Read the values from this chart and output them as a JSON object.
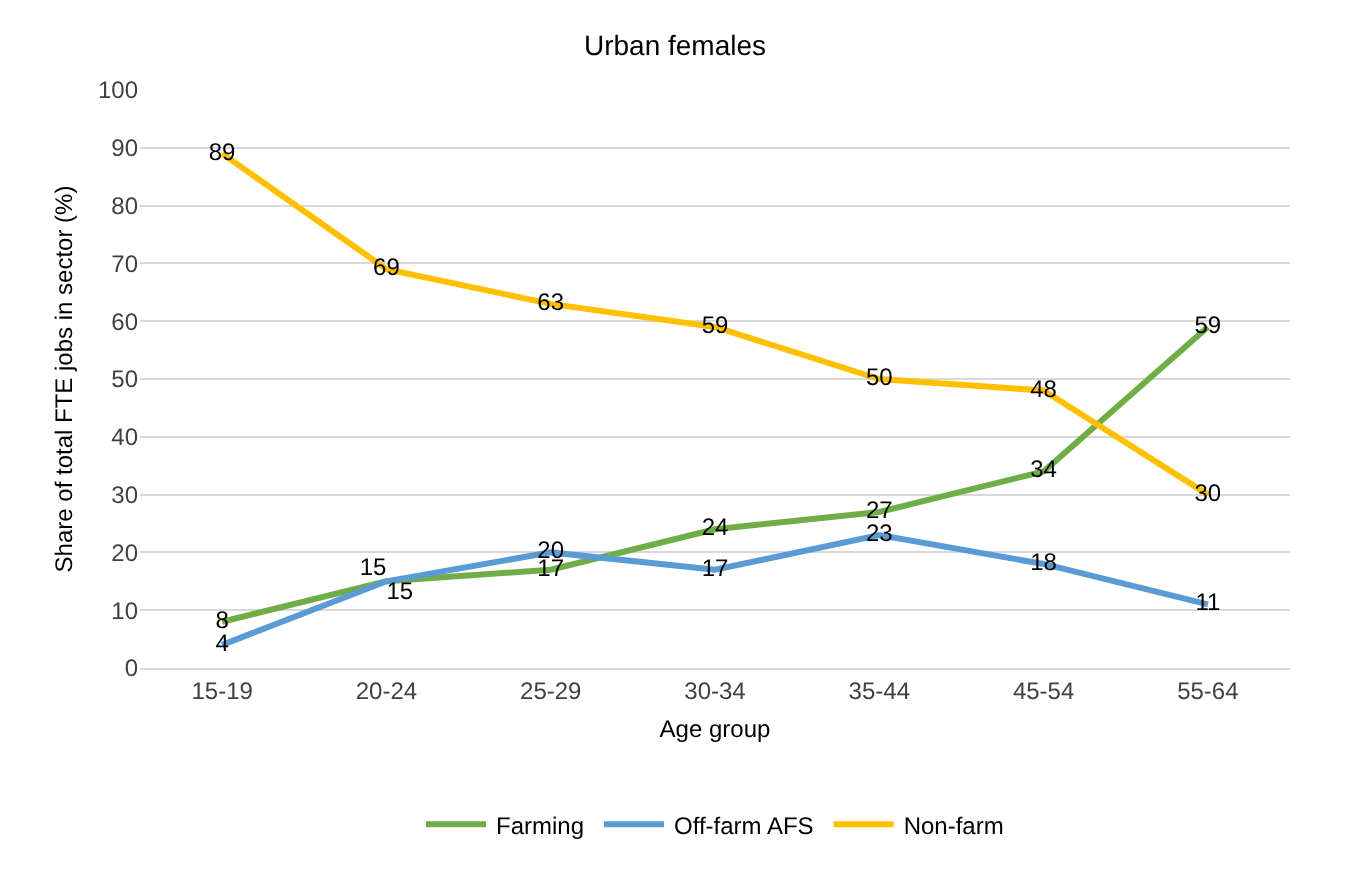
{
  "chart_data": {
    "type": "line",
    "title": "Urban females",
    "xlabel": "Age group",
    "ylabel": "Share of total FTE jobs in sector (%)",
    "categories": [
      "15-19",
      "20-24",
      "25-29",
      "30-34",
      "35-44",
      "45-54",
      "55-64"
    ],
    "series": [
      {
        "name": "Farming",
        "color": "#70ad47",
        "values": [
          8,
          15,
          17,
          24,
          27,
          34,
          59
        ]
      },
      {
        "name": "Off-farm AFS",
        "color": "#5b9bd5",
        "values": [
          4,
          15,
          20,
          17,
          23,
          18,
          11
        ]
      },
      {
        "name": "Non-farm",
        "color": "#ffc000",
        "values": [
          89,
          69,
          63,
          59,
          50,
          48,
          30
        ]
      }
    ],
    "ylim": [
      0,
      100
    ],
    "yticks": [
      0,
      10,
      20,
      30,
      40,
      50,
      60,
      70,
      80,
      90,
      100
    ],
    "grid": "y",
    "legend": "bottom",
    "data_labels": true,
    "marker": "none",
    "line_style": "solid"
  }
}
